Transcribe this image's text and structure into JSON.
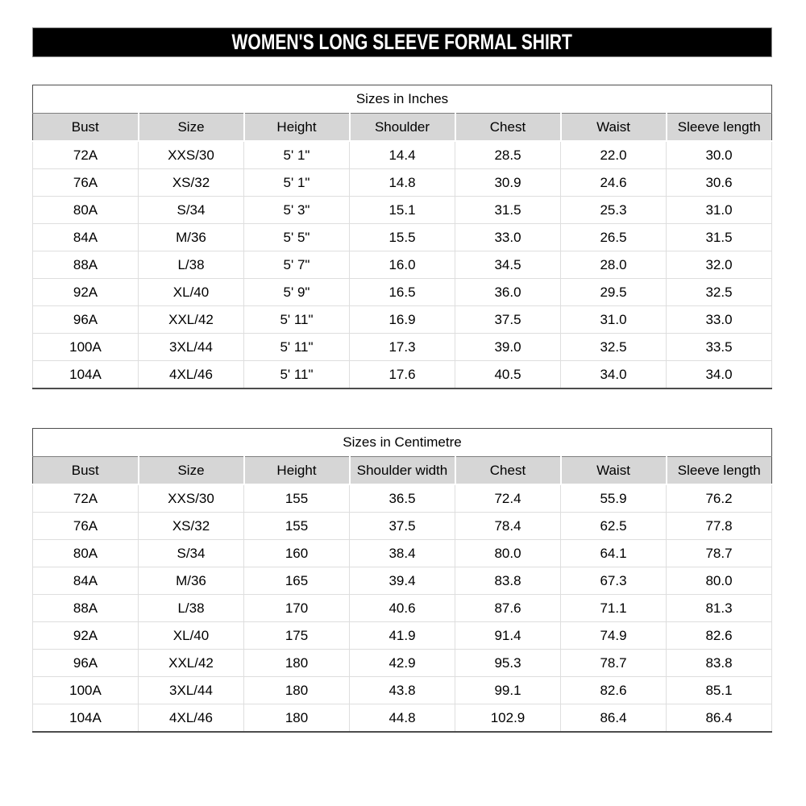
{
  "page_title": "WOMEN'S LONG SLEEVE FORMAL SHIRT",
  "colors": {
    "title_bar_bg": "#000000",
    "title_bar_text": "#ffffff",
    "header_row_bg": "#d6d6d6",
    "table_outer_border": "#4d4d4d",
    "gridline": "#dedede",
    "body_text": "#000000"
  },
  "tables": [
    {
      "title": "Sizes in Inches",
      "columns": [
        "Bust",
        "Size",
        "Height",
        "Shoulder",
        "Chest",
        "Waist",
        "Sleeve length"
      ],
      "rows": [
        [
          "72A",
          "XXS/30",
          "5' 1\"",
          "14.4",
          "28.5",
          "22.0",
          "30.0"
        ],
        [
          "76A",
          "XS/32",
          "5' 1\"",
          "14.8",
          "30.9",
          "24.6",
          "30.6"
        ],
        [
          "80A",
          "S/34",
          "5' 3\"",
          "15.1",
          "31.5",
          "25.3",
          "31.0"
        ],
        [
          "84A",
          "M/36",
          "5' 5\"",
          "15.5",
          "33.0",
          "26.5",
          "31.5"
        ],
        [
          "88A",
          "L/38",
          "5' 7\"",
          "16.0",
          "34.5",
          "28.0",
          "32.0"
        ],
        [
          "92A",
          "XL/40",
          "5' 9\"",
          "16.5",
          "36.0",
          "29.5",
          "32.5"
        ],
        [
          "96A",
          "XXL/42",
          "5' 11\"",
          "16.9",
          "37.5",
          "31.0",
          "33.0"
        ],
        [
          "100A",
          "3XL/44",
          "5' 11\"",
          "17.3",
          "39.0",
          "32.5",
          "33.5"
        ],
        [
          "104A",
          "4XL/46",
          "5' 11\"",
          "17.6",
          "40.5",
          "34.0",
          "34.0"
        ]
      ]
    },
    {
      "title": "Sizes in Centimetre",
      "columns": [
        "Bust",
        "Size",
        "Height",
        "Shoulder width",
        "Chest",
        "Waist",
        "Sleeve length"
      ],
      "rows": [
        [
          "72A",
          "XXS/30",
          "155",
          "36.5",
          "72.4",
          "55.9",
          "76.2"
        ],
        [
          "76A",
          "XS/32",
          "155",
          "37.5",
          "78.4",
          "62.5",
          "77.8"
        ],
        [
          "80A",
          "S/34",
          "160",
          "38.4",
          "80.0",
          "64.1",
          "78.7"
        ],
        [
          "84A",
          "M/36",
          "165",
          "39.4",
          "83.8",
          "67.3",
          "80.0"
        ],
        [
          "88A",
          "L/38",
          "170",
          "40.6",
          "87.6",
          "71.1",
          "81.3"
        ],
        [
          "92A",
          "XL/40",
          "175",
          "41.9",
          "91.4",
          "74.9",
          "82.6"
        ],
        [
          "96A",
          "XXL/42",
          "180",
          "42.9",
          "95.3",
          "78.7",
          "83.8"
        ],
        [
          "100A",
          "3XL/44",
          "180",
          "43.8",
          "99.1",
          "82.6",
          "85.1"
        ],
        [
          "104A",
          "4XL/46",
          "180",
          "44.8",
          "102.9",
          "86.4",
          "86.4"
        ]
      ]
    }
  ]
}
